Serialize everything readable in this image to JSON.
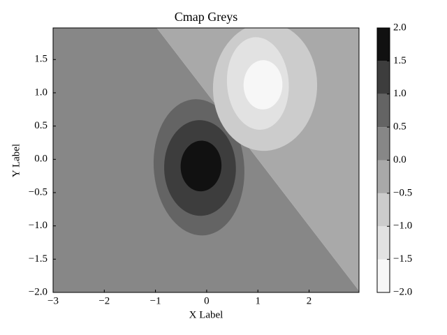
{
  "chart_data": {
    "type": "contourf",
    "title": "Cmap Greys",
    "x_label": "X Label",
    "y_label": "Y Label",
    "xlim": [
      -3,
      2.975
    ],
    "ylim": [
      -2,
      1.975
    ],
    "xticks": [
      {
        "value": -3,
        "label": "−3"
      },
      {
        "value": -2,
        "label": "−2"
      },
      {
        "value": -1,
        "label": "−1"
      },
      0,
      1,
      2
    ],
    "yticks": [
      {
        "value": -2,
        "label": "−2.0"
      },
      {
        "value": -1.5,
        "label": "−1.5"
      },
      {
        "value": -1,
        "label": "−1.0"
      },
      {
        "value": -0.5,
        "label": "−0.5"
      },
      {
        "value": 0,
        "label": "0.0"
      },
      0.5,
      {
        "value": 1,
        "label": "1.0"
      },
      1.5
    ],
    "regions": [
      {
        "color": "#878787",
        "polygon": [
          [
            -3,
            -2
          ],
          [
            -3,
            1.975
          ],
          [
            -0.975,
            1.975
          ],
          [
            2.975,
            -1.975
          ],
          [
            2.975,
            -2
          ]
        ]
      },
      {
        "color": "#a9a9a9",
        "polygon": [
          [
            -0.975,
            1.975
          ],
          [
            2.975,
            1.975
          ],
          [
            2.975,
            -1.975
          ]
        ]
      },
      {
        "color": "#646464",
        "ellipse": [
          -0.15,
          -0.12,
          0.88,
          1.03,
          12
        ]
      },
      {
        "color": "#3d3d3d",
        "ellipse": [
          -0.13,
          -0.13,
          0.7,
          0.72,
          12
        ]
      },
      {
        "color": "#111111",
        "ellipse": [
          -0.11,
          -0.1,
          0.4,
          0.38,
          12
        ]
      },
      {
        "color": "#cccccc",
        "ellipse": [
          1.14,
          1.09,
          1.02,
          0.96,
          12
        ]
      },
      {
        "color": "#e2e2e2",
        "ellipse": [
          1.0,
          1.14,
          0.6,
          0.7,
          12
        ]
      },
      {
        "color": "#f7f7f7",
        "ellipse": [
          1.1,
          1.12,
          0.38,
          0.37,
          12
        ]
      }
    ],
    "colorbar": {
      "ticks": [
        {
          "value": -2,
          "label": "−2.0"
        },
        {
          "value": -1.5,
          "label": "−1.5"
        },
        {
          "value": -1,
          "label": "−1.0"
        },
        {
          "value": -0.5,
          "label": "−0.5"
        },
        {
          "value": 0,
          "label": "0.0"
        },
        0.5,
        {
          "value": 1,
          "label": "1.0"
        },
        1.5,
        {
          "value": 2,
          "label": "2.0"
        }
      ],
      "colors": [
        "#f7f7f7",
        "#e2e2e2",
        "#cccccc",
        "#a9a9a9",
        "#878787",
        "#646464",
        "#3d3d3d",
        "#111111"
      ]
    }
  }
}
